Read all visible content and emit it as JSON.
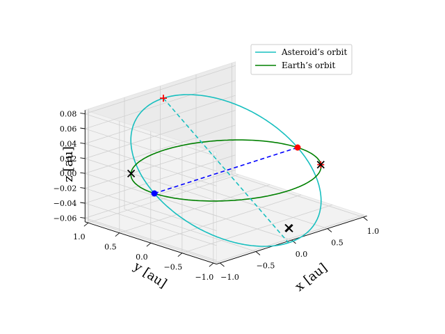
{
  "chart_data": {
    "type": "line",
    "projection": "3d",
    "xlabel": "x [au]",
    "ylabel": "y [au]",
    "zlabel": "z [au]",
    "xlim": [
      -1.05,
      1.05
    ],
    "ylim": [
      -1.05,
      1.05
    ],
    "zlim": [
      -0.065,
      0.085
    ],
    "x_ticks": [
      -1.0,
      -0.5,
      0.0,
      0.5,
      1.0
    ],
    "y_ticks": [
      1.0,
      0.5,
      0.0,
      -0.5,
      -1.0
    ],
    "z_ticks": [
      0.08,
      0.06,
      0.04,
      0.02,
      0.0,
      -0.02,
      -0.04,
      -0.06
    ],
    "x_tick_labels": [
      "−1.0",
      "−0.5",
      "0.0",
      "0.5",
      "1.0"
    ],
    "y_tick_labels": [
      "1.0",
      "0.5",
      "0.0",
      "−0.5",
      "−1.0"
    ],
    "z_tick_labels": [
      "0.08",
      "0.06",
      "0.04",
      "0.02",
      "0.00",
      "−0.02",
      "−0.04",
      "−0.06"
    ],
    "legend_position": "top-right",
    "series": [
      {
        "name": "Asteroid's orbit",
        "label": "Asteroid’s orbit",
        "color": "#17bfbf",
        "shape": "ellipse",
        "semi_major_au": 1.0,
        "inclination_amplitude_au": 0.07
      },
      {
        "name": "Earth's orbit",
        "label": "Earth’s orbit",
        "color": "#008000",
        "shape": "circle",
        "radius_au": 1.0,
        "z_au": 0.0
      }
    ],
    "lines": [
      {
        "name": "line-of-nodes",
        "color": "#0000ff",
        "style": "dashed",
        "from": [
          -1.0,
          0.0,
          0.0
        ],
        "to": [
          1.0,
          0.0,
          0.0
        ]
      },
      {
        "name": "apsidal-line",
        "color": "#17bfbf",
        "style": "dashed",
        "from": [
          0.0,
          1.0,
          0.07
        ],
        "to": [
          0.0,
          -1.0,
          -0.07
        ]
      }
    ],
    "markers": [
      {
        "name": "node-blue",
        "type": "dot",
        "color": "#0000ff",
        "point": [
          -1.0,
          0.0,
          0.0
        ]
      },
      {
        "name": "node-red",
        "type": "dot",
        "color": "#ff0000",
        "point": [
          1.0,
          0.0,
          0.0
        ]
      },
      {
        "name": "red-plus-top",
        "type": "plus",
        "color": "#ff0000",
        "point": [
          0.0,
          1.0,
          0.07
        ]
      },
      {
        "name": "red-plus-right",
        "type": "plus",
        "color": "#ff0000",
        "point": [
          0.79,
          -0.61,
          0.0
        ]
      },
      {
        "name": "cross-asteroid-1",
        "type": "x",
        "color": "#000000",
        "point": [
          -0.73,
          0.68,
          0.0
        ]
      },
      {
        "name": "cross-earth-1",
        "type": "x",
        "color": "#000000",
        "point": [
          0.79,
          -0.61,
          0.0
        ]
      },
      {
        "name": "cross-lower-1",
        "type": "x",
        "color": "#000000",
        "point": [
          0.0,
          -1.0,
          -0.05
        ]
      },
      {
        "name": "cross-lower-2",
        "type": "x",
        "color": "#000000",
        "point": [
          0.01,
          -1.0,
          -0.051
        ]
      }
    ]
  }
}
